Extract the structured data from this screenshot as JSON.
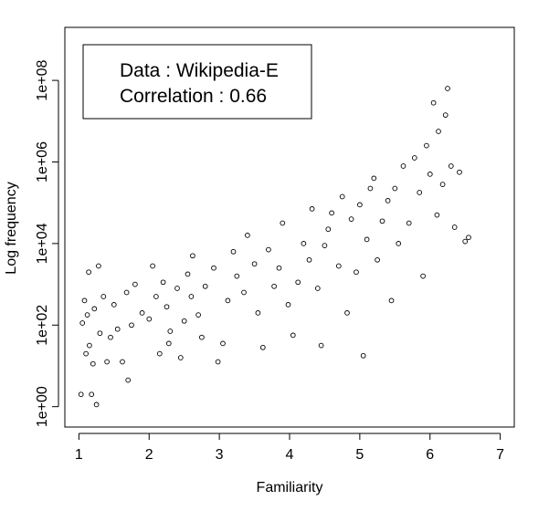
{
  "chart_data": {
    "type": "scatter",
    "xlabel": "Familiarity",
    "ylabel": "Log frequency",
    "xlim": [
      0.8,
      7.2
    ],
    "ylim_log10": [
      -0.5,
      9.3
    ],
    "y_scale": "log10",
    "x_ticks": [
      "1",
      "2",
      "3",
      "4",
      "5",
      "6",
      "7"
    ],
    "y_ticks": [
      "1e+00",
      "1e+02",
      "1e+04",
      "1e+06",
      "1e+08"
    ],
    "marker": "open-circle",
    "grid": false,
    "legend": {
      "placement": "top-left",
      "lines": [
        "Data : Wikipedia-E",
        "Correlation : 0.66"
      ]
    },
    "series": [
      {
        "points": [
          [
            1.03,
            0.3
          ],
          [
            1.18,
            0.3
          ],
          [
            1.25,
            0.05
          ],
          [
            1.1,
            1.3
          ],
          [
            1.2,
            1.05
          ],
          [
            1.3,
            1.8
          ],
          [
            1.15,
            1.5
          ],
          [
            1.05,
            2.05
          ],
          [
            1.12,
            2.25
          ],
          [
            1.08,
            2.6
          ],
          [
            1.22,
            2.4
          ],
          [
            1.35,
            2.7
          ],
          [
            1.28,
            3.45
          ],
          [
            1.14,
            3.3
          ],
          [
            1.4,
            1.1
          ],
          [
            1.45,
            1.7
          ],
          [
            1.55,
            1.9
          ],
          [
            1.62,
            1.1
          ],
          [
            1.7,
            0.65
          ],
          [
            1.75,
            2.0
          ],
          [
            1.5,
            2.5
          ],
          [
            1.68,
            2.8
          ],
          [
            1.8,
            3.0
          ],
          [
            1.9,
            2.3
          ],
          [
            2.0,
            2.15
          ],
          [
            2.1,
            2.7
          ],
          [
            2.05,
            3.45
          ],
          [
            2.2,
            3.05
          ],
          [
            2.25,
            2.45
          ],
          [
            2.4,
            2.9
          ],
          [
            2.3,
            1.85
          ],
          [
            2.15,
            1.3
          ],
          [
            2.28,
            1.55
          ],
          [
            2.45,
            1.2
          ],
          [
            2.5,
            2.1
          ],
          [
            2.55,
            3.25
          ],
          [
            2.62,
            3.7
          ],
          [
            2.6,
            2.7
          ],
          [
            2.7,
            2.25
          ],
          [
            2.75,
            1.7
          ],
          [
            2.8,
            2.95
          ],
          [
            2.92,
            3.4
          ],
          [
            2.98,
            1.1
          ],
          [
            3.05,
            1.55
          ],
          [
            3.12,
            2.6
          ],
          [
            3.2,
            3.8
          ],
          [
            3.25,
            3.2
          ],
          [
            3.35,
            2.8
          ],
          [
            3.4,
            4.2
          ],
          [
            3.5,
            3.5
          ],
          [
            3.55,
            2.3
          ],
          [
            3.62,
            1.45
          ],
          [
            3.7,
            3.85
          ],
          [
            3.78,
            2.95
          ],
          [
            3.85,
            3.4
          ],
          [
            3.9,
            4.5
          ],
          [
            3.98,
            2.5
          ],
          [
            4.05,
            1.75
          ],
          [
            4.12,
            3.05
          ],
          [
            4.2,
            4.0
          ],
          [
            4.28,
            3.6
          ],
          [
            4.32,
            4.85
          ],
          [
            4.4,
            2.9
          ],
          [
            4.45,
            1.5
          ],
          [
            4.5,
            3.95
          ],
          [
            4.55,
            4.35
          ],
          [
            4.6,
            4.75
          ],
          [
            4.7,
            3.45
          ],
          [
            4.75,
            5.15
          ],
          [
            4.82,
            2.3
          ],
          [
            4.88,
            4.6
          ],
          [
            4.95,
            3.3
          ],
          [
            5.0,
            4.95
          ],
          [
            5.05,
            1.25
          ],
          [
            5.1,
            4.1
          ],
          [
            5.15,
            5.35
          ],
          [
            5.2,
            5.6
          ],
          [
            5.25,
            3.6
          ],
          [
            5.32,
            4.55
          ],
          [
            5.4,
            5.05
          ],
          [
            5.45,
            2.6
          ],
          [
            5.5,
            5.35
          ],
          [
            5.55,
            4.0
          ],
          [
            5.62,
            5.9
          ],
          [
            5.7,
            4.5
          ],
          [
            5.78,
            6.1
          ],
          [
            5.85,
            5.25
          ],
          [
            5.9,
            3.2
          ],
          [
            5.95,
            6.4
          ],
          [
            6.0,
            5.7
          ],
          [
            6.05,
            7.45
          ],
          [
            6.1,
            4.7
          ],
          [
            6.12,
            6.75
          ],
          [
            6.18,
            5.45
          ],
          [
            6.22,
            7.15
          ],
          [
            6.25,
            7.8
          ],
          [
            6.3,
            5.9
          ],
          [
            6.35,
            4.4
          ],
          [
            6.42,
            5.75
          ],
          [
            6.5,
            4.05
          ],
          [
            6.55,
            4.15
          ]
        ]
      }
    ]
  }
}
